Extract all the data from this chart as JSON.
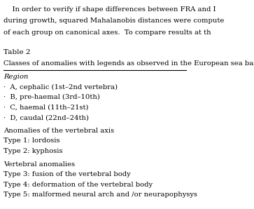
{
  "bg_color": "#ffffff",
  "top_text_lines": [
    "    In order to verify if shape differences between FRA and I",
    "during growth, squared Mahalanobis distances were compute",
    "of each group on canonical axes.  To compare results at th"
  ],
  "table_label": "Table 2",
  "table_subtitle": "Classes of anomalies with legends as observed in the European sea bass",
  "section_header": "Region",
  "bullet_items": [
    "·  A, cephalic (1st–2nd vertebra)",
    "·  B, pre-haemal (3rd–10th)",
    "·  C, haemal (11th–21st)",
    "·  D, caudal (22nd–24th)"
  ],
  "group1_header": "Anomalies of the vertebral axis",
  "group1_items": [
    "Type 1: lordosis",
    "Type 2: kyphosis"
  ],
  "group2_header": "Vertebral anomalies",
  "group2_items": [
    "Type 3: fusion of the vertebral body",
    "Type 4: deformation of the vertebral body",
    "Type 5: malformed neural arch and /or neurapophysys"
  ],
  "font_size_body": 7.2,
  "font_size_table_label": 7.5,
  "font_size_subtitle": 7.2,
  "font_size_section": 7.2
}
